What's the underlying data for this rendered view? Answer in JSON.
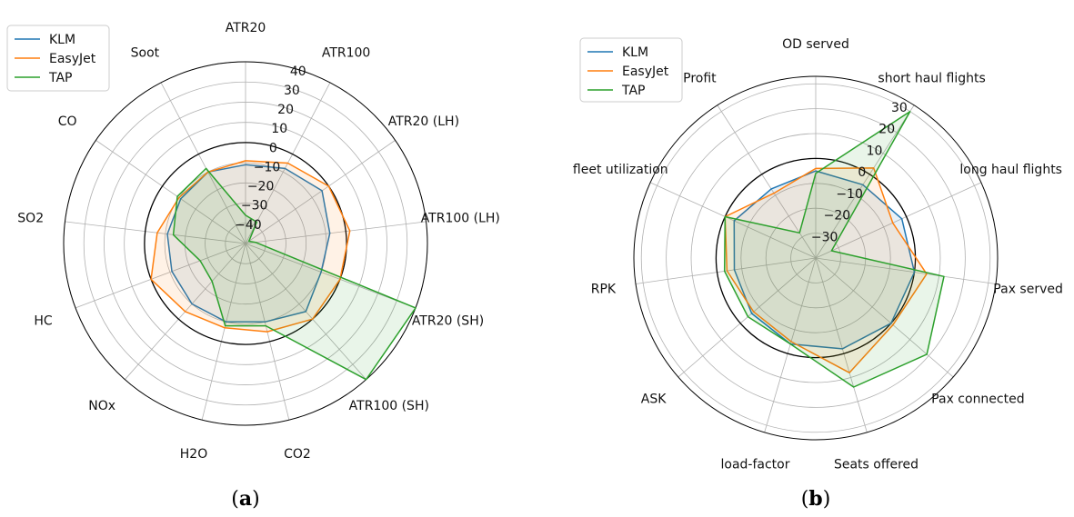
{
  "chart_data": [
    {
      "type": "radar",
      "panel_label": "(a)",
      "categories": [
        "ATR20",
        "ATR100",
        "ATR20 (LH)",
        "ATR100 (LH)",
        "ATR20 (SH)",
        "ATR100 (SH)",
        "CO2",
        "H2O",
        "NOx",
        "HC",
        "SO2",
        "CO",
        "Soot"
      ],
      "r_ticks": [
        -40,
        -30,
        -20,
        -10,
        0,
        10,
        20,
        30,
        40
      ],
      "r_range": [
        -50,
        40
      ],
      "reference_circle": 0,
      "legend_position": "top-left",
      "grid": true,
      "series": [
        {
          "name": "KLM",
          "color": "#1f77b4",
          "values": [
            -11,
            -8,
            -4,
            -8,
            -10,
            -5,
            -10,
            -10,
            -10,
            -11,
            -11,
            -11,
            -10
          ]
        },
        {
          "name": "EasyJet",
          "color": "#ff7f0e",
          "values": [
            -9,
            -5,
            0,
            2,
            0,
            0,
            -5,
            -7,
            -5,
            0,
            -6,
            -10,
            -10
          ]
        },
        {
          "name": "TAP",
          "color": "#2ca02c",
          "values": [
            -36,
            -38,
            -48,
            -45,
            40,
            40,
            -8,
            -8,
            -25,
            -26,
            -14,
            -9,
            -8
          ]
        }
      ]
    },
    {
      "type": "radar",
      "panel_label": "(b)",
      "categories": [
        "OD served",
        "short haul flights",
        "long haul flights",
        "Pax served",
        "Pax connected",
        "Seats offered",
        "load-factor",
        "ASK",
        "RPK",
        "fleet utilization",
        "Profit"
      ],
      "r_ticks": [
        -30,
        -20,
        -10,
        0,
        10,
        20,
        30
      ],
      "r_range": [
        -40,
        33
      ],
      "reference_circle": 0,
      "legend_position": "top-left",
      "grid": true,
      "series": [
        {
          "name": "KLM",
          "color": "#1f77b4",
          "values": [
            -5,
            -5,
            -2,
            0,
            0,
            -2,
            -4,
            -6,
            -7,
            -4,
            -7
          ]
        },
        {
          "name": "EasyJet",
          "color": "#ff7f0e",
          "values": [
            -4,
            3,
            -6,
            5,
            1,
            8,
            -5,
            -7,
            -4,
            0,
            -9
          ]
        },
        {
          "name": "TAP",
          "color": "#2ca02c",
          "values": [
            -6,
            30,
            -33,
            12,
            19,
            14,
            -4,
            -4,
            -3,
            0,
            -28
          ]
        }
      ]
    }
  ]
}
